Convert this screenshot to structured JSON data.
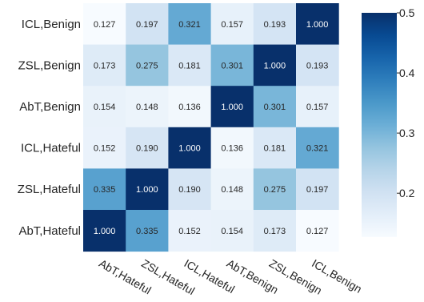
{
  "chart_data": {
    "type": "heatmap",
    "title": "",
    "xlabel": "",
    "ylabel": "",
    "row_labels": [
      "ICL,Benign",
      "ZSL,Benign",
      "AbT,Benign",
      "ICL,Hateful",
      "ZSL,Hateful",
      "AbT,Hateful"
    ],
    "col_labels": [
      "AbT,Hateful",
      "ZSL,Hateful",
      "ICL,Hateful",
      "AbT,Benign",
      "ZSL,Benign",
      "ICL,Benign"
    ],
    "cell_text": [
      [
        "0.127",
        "0.197",
        "0.321",
        "0.157",
        "0.193",
        "1.000"
      ],
      [
        "0.173",
        "0.275",
        "0.181",
        "0.301",
        "1.000",
        "0.193"
      ],
      [
        "0.154",
        "0.148",
        "0.136",
        "1.000",
        "0.301",
        "0.157"
      ],
      [
        "0.152",
        "0.190",
        "1.000",
        "0.136",
        "0.181",
        "0.321"
      ],
      [
        "0.335",
        "1.000",
        "0.190",
        "0.148",
        "0.275",
        "0.197"
      ],
      [
        "1.000",
        "0.335",
        "0.152",
        "0.154",
        "0.173",
        "0.127"
      ]
    ],
    "values": [
      [
        0.127,
        0.197,
        0.321,
        0.157,
        0.193,
        1.0
      ],
      [
        0.173,
        0.275,
        0.181,
        0.301,
        1.0,
        0.193
      ],
      [
        0.154,
        0.148,
        0.136,
        1.0,
        0.301,
        0.157
      ],
      [
        0.152,
        0.19,
        1.0,
        0.136,
        0.181,
        0.321
      ],
      [
        0.335,
        1.0,
        0.19,
        0.148,
        0.275,
        0.197
      ],
      [
        1.0,
        0.335,
        0.152,
        0.154,
        0.173,
        0.127
      ]
    ],
    "colormap": "Blues",
    "vmin": 0.127,
    "vmax": 0.5,
    "colorbar_ticks": [
      "0.2",
      "0.3",
      "0.4",
      "0.5"
    ],
    "grid": false,
    "legend": "colorbar-right"
  }
}
